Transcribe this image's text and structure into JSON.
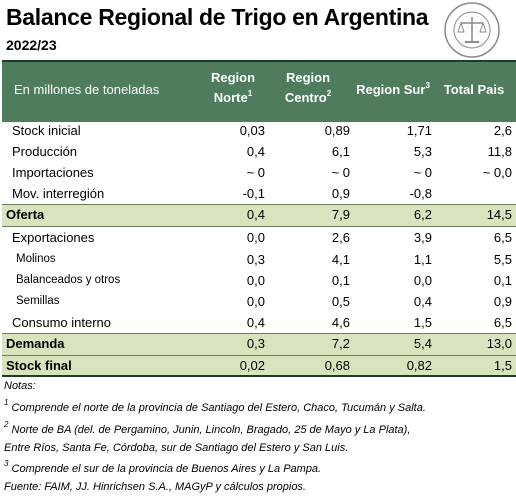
{
  "header": {
    "title": "Balance Regional de Trigo en Argentina",
    "subtitle": "2022/23"
  },
  "table": {
    "columns": [
      {
        "lines": [
          "En millones de toneladas"
        ]
      },
      {
        "lines": [
          "Region",
          "Norte"
        ],
        "note": "1"
      },
      {
        "lines": [
          "Region",
          "Centro"
        ],
        "note": "2"
      },
      {
        "lines": [
          "Region Sur"
        ],
        "note": "3"
      },
      {
        "lines": [
          "Total Pais"
        ]
      }
    ],
    "rows": [
      {
        "label": "Stock inicial",
        "cells": [
          "0,03",
          "0,89",
          "1,71",
          "2,6"
        ]
      },
      {
        "label": "Producción",
        "cells": [
          "0,4",
          "6,1",
          "5,3",
          "11,8"
        ]
      },
      {
        "label": "Importaciones",
        "cells": [
          "~ 0",
          "~ 0",
          "~ 0",
          "~ 0,0"
        ]
      },
      {
        "label": "Mov. interregión",
        "cells": [
          "-0,1",
          "0,9",
          "-0,8",
          null
        ]
      },
      {
        "label": "Oferta",
        "cells": [
          "0,4",
          "7,9",
          "6,2",
          "14,5"
        ]
      },
      {
        "label": "Exportaciones",
        "cells": [
          "0,0",
          "2,6",
          "3,9",
          "6,5"
        ]
      },
      {
        "label": "Molinos",
        "cells": [
          "0,3",
          "4,1",
          "1,1",
          "5,5"
        ]
      },
      {
        "label": "Balanceados y otros",
        "cells": [
          "0,0",
          "0,1",
          "0,0",
          "0,1"
        ]
      },
      {
        "label": "Semillas",
        "cells": [
          "0,0",
          "0,5",
          "0,4",
          "0,9"
        ]
      },
      {
        "label": "Consumo interno",
        "cells": [
          "0,4",
          "4,6",
          "1,5",
          "6,5"
        ]
      },
      {
        "label": "Demanda",
        "cells": [
          "0,3",
          "7,2",
          "5,4",
          "13,0"
        ]
      },
      {
        "label": "Stock final",
        "cells": [
          "0,02",
          "0,68",
          "0,82",
          "1,5"
        ]
      }
    ]
  },
  "notes": {
    "heading": "Notas:",
    "items": [
      {
        "mark": "1",
        "lines": [
          "Comprende el norte de la provincia de Santiago del Estero, Chaco, Tucumán y Salta."
        ]
      },
      {
        "mark": "2",
        "lines": [
          "Norte de BA (del. de Pergamino, Junin, Lincoln, Bragado, 25 de Mayo y La Plata),",
          "Entre Ríos, Santa Fe, Córdoba, sur de Santiago del Estero y San Luis."
        ]
      },
      {
        "mark": "3",
        "lines": [
          "Comprende el sur de la provincia de Buenos Aires y La Pampa."
        ]
      }
    ],
    "source": "Fuente: FAIM, JJ. Hinrichsen S.A., MAGyP y cálculos propios."
  }
}
